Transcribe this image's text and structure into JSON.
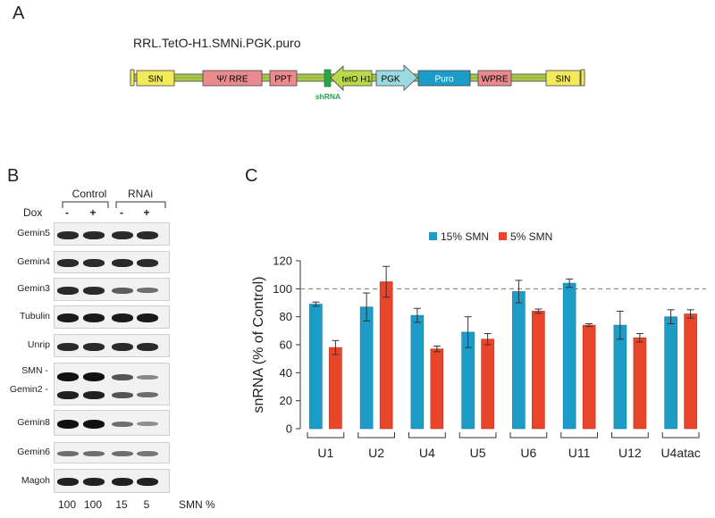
{
  "panel_a": {
    "letter": "A",
    "construct_name": "RRL.TetO-H1.SMNi.PGK.puro",
    "elements": [
      {
        "label": "SIN",
        "color": "#f2ea5a"
      },
      {
        "label": "Ψ/ RRE",
        "color": "#e88a8e"
      },
      {
        "label": "PPT",
        "color": "#e88a8e"
      },
      {
        "label": "tetO H1",
        "color": "#b9d94a"
      },
      {
        "label": "PGK",
        "color": "#9ad9e0"
      },
      {
        "label": "Puro",
        "color": "#1c9cc6"
      },
      {
        "label": "WPRE",
        "color": "#e88a8e"
      },
      {
        "label": "SIN",
        "color": "#f2ea5a"
      }
    ],
    "shrna_label": "shRNA",
    "shrna_color": "#22a84a",
    "backbone_color": "#a8c84a"
  },
  "panel_b": {
    "letter": "B",
    "group_control": "Control",
    "group_rnai": "RNAi",
    "dox_label": "Dox",
    "dox_signs": [
      "-",
      "+",
      "-",
      "+"
    ],
    "blots": [
      {
        "label": "Gemin5",
        "intensity": [
          0.85,
          0.85,
          0.85,
          0.85
        ]
      },
      {
        "label": "Gemin4",
        "intensity": [
          0.85,
          0.85,
          0.85,
          0.85
        ]
      },
      {
        "label": "Gemin3",
        "intensity": [
          0.85,
          0.85,
          0.55,
          0.45
        ]
      },
      {
        "label": "Tubulin",
        "intensity": [
          0.95,
          0.95,
          0.95,
          0.95
        ]
      },
      {
        "label": "Unrip",
        "intensity": [
          0.85,
          0.85,
          0.85,
          0.85
        ]
      },
      {
        "label": "SMN",
        "label2": "Gemin2",
        "intensity": [
          1.0,
          1.0,
          0.6,
          0.3
        ],
        "intensity2": [
          0.9,
          0.9,
          0.6,
          0.45
        ]
      },
      {
        "label": "Gemin8",
        "intensity": [
          1.0,
          1.0,
          0.45,
          0.25
        ]
      },
      {
        "label": "Gemin6",
        "intensity": [
          0.45,
          0.45,
          0.45,
          0.4
        ]
      },
      {
        "label": "Magoh",
        "intensity": [
          0.9,
          0.9,
          0.9,
          0.9
        ]
      }
    ],
    "smn_percent": [
      "100",
      "100",
      "15",
      "5"
    ],
    "smn_percent_label": "SMN %"
  },
  "panel_c": {
    "letter": "C"
  },
  "chart_data": {
    "type": "bar",
    "categories": [
      "U1",
      "U2",
      "U4",
      "U5",
      "U6",
      "U11",
      "U12",
      "U4atac"
    ],
    "series": [
      {
        "name": "15% SMN",
        "color": "#1c9cc6",
        "values": [
          89,
          87,
          81,
          69,
          98,
          104,
          74,
          80
        ],
        "errors": [
          1.5,
          10,
          5,
          11,
          8,
          3,
          10,
          5
        ]
      },
      {
        "name": "5% SMN",
        "color": "#e8452a",
        "values": [
          58,
          105,
          57,
          64,
          84,
          74,
          65,
          82
        ],
        "errors": [
          5,
          11,
          2,
          4,
          1.5,
          1,
          3,
          3
        ]
      }
    ],
    "ylabel": "snRNA  (% of  Control)",
    "ylim": [
      0,
      120
    ],
    "yticks": [
      "0",
      "20",
      "40",
      "60",
      "80",
      "100",
      "120"
    ],
    "reference_line": 100,
    "legend_position": "top",
    "grid": false
  }
}
